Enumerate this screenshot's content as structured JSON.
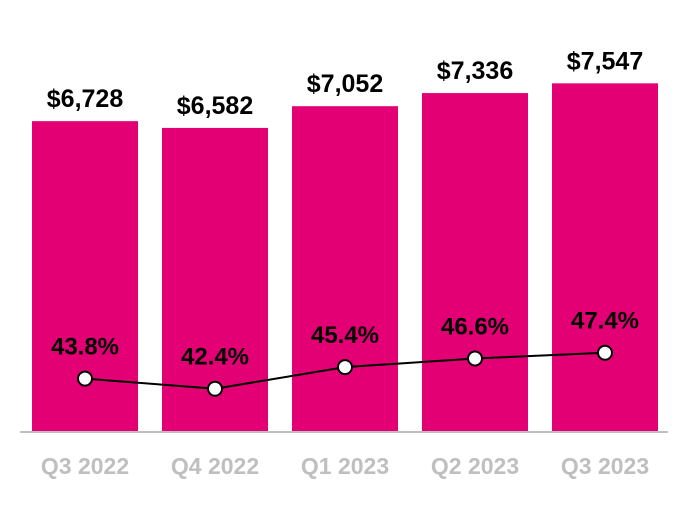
{
  "chart_data": {
    "type": "bar",
    "categories": [
      "Q3 2022",
      "Q4 2022",
      "Q1 2023",
      "Q2 2023",
      "Q3 2023"
    ],
    "series": [
      {
        "type": "bar",
        "values": [
          6728,
          6582,
          7052,
          7336,
          7547
        ],
        "labels": [
          "$6,728",
          "$6,582",
          "$7,052",
          "$7,336",
          "$7,547"
        ],
        "color": "#E20074"
      },
      {
        "type": "line",
        "values": [
          43.8,
          42.4,
          45.4,
          46.6,
          47.4
        ],
        "labels": [
          "43.8%",
          "42.4%",
          "45.4%",
          "46.6%",
          "47.4%"
        ],
        "color": "#000000"
      }
    ],
    "title": "",
    "xlabel": "",
    "ylabel": "",
    "ylim": [
      0,
      8500
    ],
    "line_ylim": [
      0,
      55
    ],
    "grid": false,
    "legend": "none",
    "colors": {
      "bar": "#E20074",
      "bar_label": "#000000",
      "line_label": "#000000",
      "tick_label": "#BFBFBF",
      "axis": "#BFBFBF",
      "marker_fill": "#ffffff"
    }
  }
}
